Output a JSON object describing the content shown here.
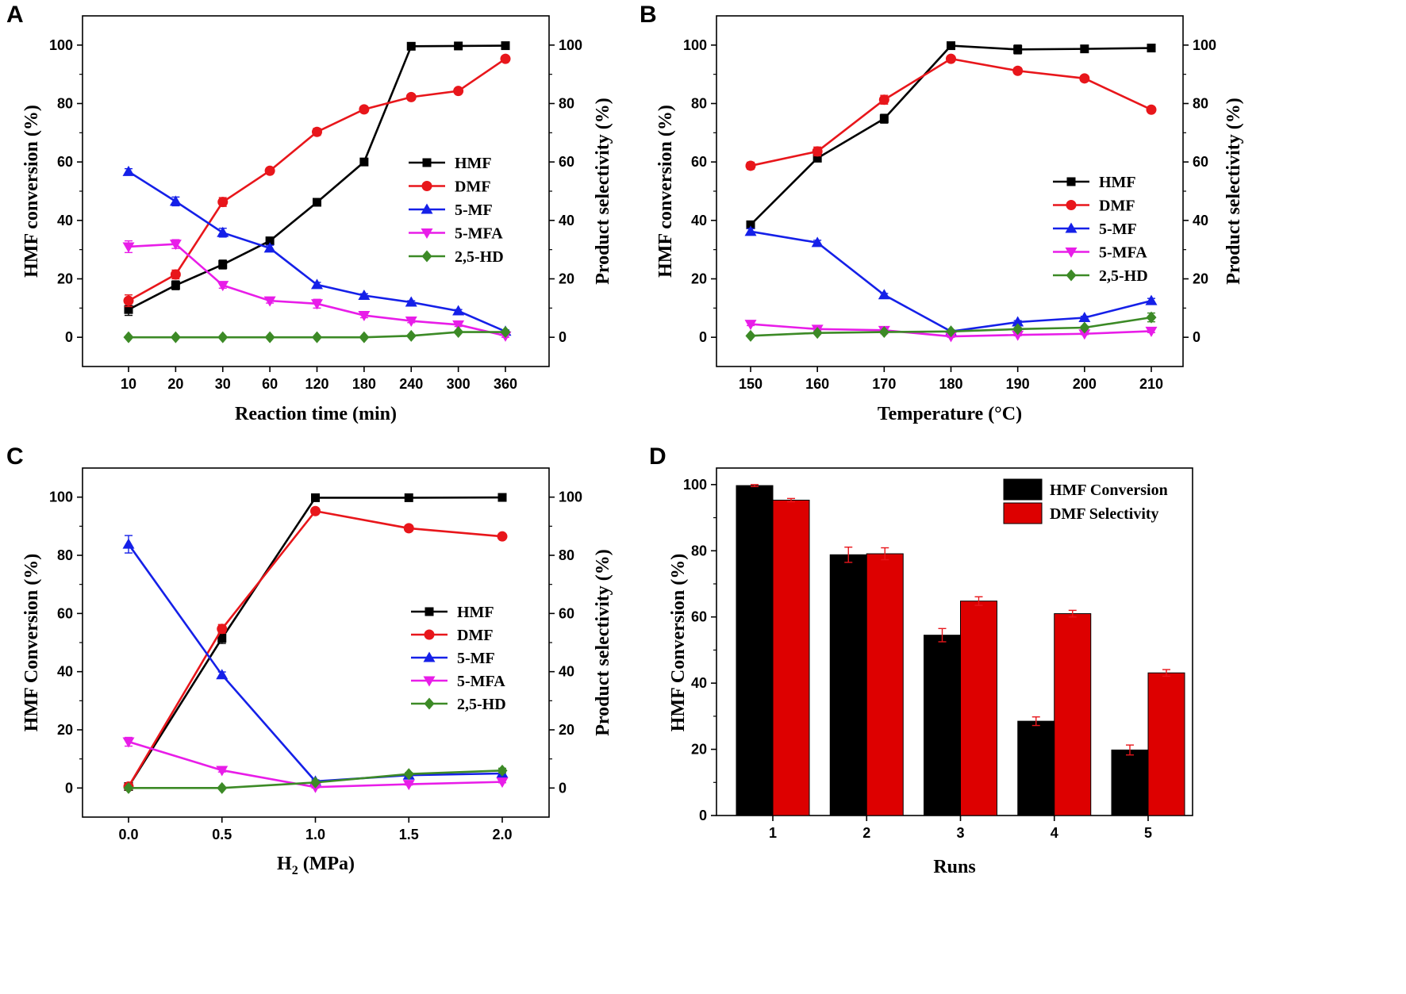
{
  "chart_data": [
    {
      "panel": "A",
      "type": "line",
      "xlabel": "Reaction time (min)",
      "ylabel": "HMF conversion (%)",
      "y2label": "Product selectivity (%)",
      "categories": [
        "10",
        "20",
        "30",
        "60",
        "120",
        "180",
        "240",
        "300",
        "360"
      ],
      "ylim": [
        -10,
        110
      ],
      "y2lim": [
        -10,
        110
      ],
      "yticks": [
        "0",
        "20",
        "40",
        "60",
        "80",
        "100"
      ],
      "legend_position": "center-right",
      "series": [
        {
          "name": "HMF",
          "color": "#000000",
          "marker": "square",
          "axis": "left",
          "values": [
            9.5,
            17.8,
            24.9,
            33.0,
            46.2,
            60.0,
            99.6,
            99.7,
            99.8
          ],
          "errors": [
            2,
            1.5,
            1.5,
            1,
            1,
            0.5,
            0.5,
            0.5,
            0.5
          ]
        },
        {
          "name": "DMF",
          "color": "#e8161b",
          "marker": "circle",
          "axis": "right",
          "values": [
            12.5,
            21.5,
            46.3,
            57.0,
            70.3,
            78.0,
            82.2,
            84.3,
            95.3
          ],
          "errors": [
            2,
            1.5,
            1.5,
            0.8,
            1.2,
            1,
            0.5,
            0.5,
            0.5
          ]
        },
        {
          "name": "5-MF",
          "color": "#1520e8",
          "marker": "triangle-up",
          "axis": "right",
          "values": [
            56.7,
            46.5,
            35.8,
            30.5,
            18.0,
            14.3,
            12.0,
            9.0,
            2.0
          ],
          "errors": [
            1,
            1.5,
            1.5,
            1,
            0.8,
            0.6,
            0.5,
            0.5,
            0.5
          ]
        },
        {
          "name": "5-MFA",
          "color": "#e81de8",
          "marker": "triangle-down",
          "axis": "right",
          "values": [
            31.0,
            31.9,
            17.8,
            12.5,
            11.5,
            7.5,
            5.6,
            4.3,
            0.5
          ],
          "errors": [
            2,
            1.5,
            1,
            0.8,
            1.5,
            0.8,
            0.6,
            0.6,
            0.5
          ]
        },
        {
          "name": "2,5-HD",
          "color": "#3c8a26",
          "marker": "diamond",
          "axis": "right",
          "values": [
            0,
            0,
            0,
            0,
            0,
            0,
            0.5,
            1.8,
            1.8
          ],
          "errors": [
            0,
            0,
            0,
            0,
            0,
            0,
            0.3,
            0.3,
            0.3
          ]
        }
      ]
    },
    {
      "panel": "B",
      "type": "line",
      "xlabel": "Temperature (°C)",
      "ylabel": "HMF conversion (%)",
      "y2label": "Product selectivity (%)",
      "categories": [
        "150",
        "160",
        "170",
        "180",
        "190",
        "200",
        "210"
      ],
      "ylim": [
        -10,
        110
      ],
      "y2lim": [
        -10,
        110
      ],
      "yticks": [
        "0",
        "20",
        "40",
        "60",
        "80",
        "100"
      ],
      "legend_position": "center-right",
      "series": [
        {
          "name": "HMF",
          "color": "#000000",
          "marker": "square",
          "axis": "left",
          "values": [
            38.5,
            61.3,
            74.8,
            99.8,
            98.5,
            98.7,
            99.0
          ],
          "errors": [
            1.2,
            1,
            1.5,
            0.5,
            1.5,
            1,
            0.5
          ]
        },
        {
          "name": "DMF",
          "color": "#e8161b",
          "marker": "circle",
          "axis": "right",
          "values": [
            58.7,
            63.6,
            81.3,
            95.3,
            91.2,
            88.6,
            77.9
          ],
          "errors": [
            1.2,
            1.5,
            1.5,
            0.6,
            1,
            0.8,
            0.8
          ]
        },
        {
          "name": "5-MF",
          "color": "#1520e8",
          "marker": "triangle-up",
          "axis": "right",
          "values": [
            36.2,
            32.4,
            14.5,
            2.0,
            5.2,
            6.7,
            12.5
          ],
          "errors": [
            1,
            0.8,
            0.5,
            0.5,
            0.5,
            0.5,
            0.8
          ]
        },
        {
          "name": "5-MFA",
          "color": "#e81de8",
          "marker": "triangle-down",
          "axis": "right",
          "values": [
            4.5,
            2.8,
            2.4,
            0.3,
            0.8,
            1.2,
            2.1
          ],
          "errors": [
            0.5,
            0.5,
            1.2,
            0.3,
            0.3,
            0.3,
            0.5
          ]
        },
        {
          "name": "2,5-HD",
          "color": "#3c8a26",
          "marker": "diamond",
          "axis": "right",
          "values": [
            0.5,
            1.5,
            1.8,
            2.0,
            2.8,
            3.3,
            6.8
          ],
          "errors": [
            0.3,
            0.3,
            0.3,
            0.3,
            0.5,
            0.5,
            1.5
          ]
        }
      ]
    },
    {
      "panel": "C",
      "type": "line",
      "xlabel": "H2 (MPa)",
      "xlabel_main": "H",
      "xlabel_sub": "2",
      "xlabel_rest": " (MPa)",
      "ylabel": "HMF Conversion (%)",
      "y2label": "Product selectivity (%)",
      "categories": [
        "0.0",
        "0.5",
        "1.0",
        "1.5",
        "2.0"
      ],
      "ylim": [
        -10,
        110
      ],
      "y2lim": [
        -10,
        110
      ],
      "yticks": [
        "0",
        "20",
        "40",
        "60",
        "80",
        "100"
      ],
      "legend_position": "center-right",
      "series": [
        {
          "name": "HMF",
          "color": "#000000",
          "marker": "square",
          "axis": "left",
          "values": [
            0.5,
            51.5,
            99.8,
            99.8,
            99.9
          ],
          "errors": [
            0.3,
            1.8,
            0.5,
            0.8,
            1
          ]
        },
        {
          "name": "DMF",
          "color": "#e8161b",
          "marker": "circle",
          "axis": "right",
          "values": [
            0.5,
            54.7,
            95.2,
            89.3,
            86.5
          ],
          "errors": [
            0.3,
            1.5,
            0.5,
            1,
            0.6
          ]
        },
        {
          "name": "5-MF",
          "color": "#1520e8",
          "marker": "triangle-up",
          "axis": "right",
          "values": [
            83.8,
            38.9,
            2.3,
            4.4,
            5.0
          ],
          "errors": [
            3,
            1,
            0.5,
            0.5,
            0.8
          ]
        },
        {
          "name": "5-MFA",
          "color": "#e81de8",
          "marker": "triangle-down",
          "axis": "right",
          "values": [
            15.9,
            6.1,
            0.3,
            1.3,
            2.1
          ],
          "errors": [
            1.5,
            0.6,
            0.3,
            0.3,
            0.3
          ]
        },
        {
          "name": "2,5-HD",
          "color": "#3c8a26",
          "marker": "diamond",
          "axis": "right",
          "values": [
            0,
            0,
            1.9,
            4.8,
            6.0
          ],
          "errors": [
            0,
            0,
            0.3,
            0.5,
            0.8
          ]
        }
      ]
    },
    {
      "panel": "D",
      "type": "bar",
      "xlabel": "Runs",
      "ylabel": "HMF Conversion (%)",
      "categories": [
        "1",
        "2",
        "3",
        "4",
        "5"
      ],
      "ylim": [
        0,
        105
      ],
      "yticks": [
        "0",
        "20",
        "40",
        "60",
        "80",
        "100"
      ],
      "legend_position": "top-right",
      "series": [
        {
          "name": "HMF Conversion",
          "color": "#000000",
          "values": [
            99.7,
            78.8,
            54.5,
            28.5,
            19.8
          ],
          "errors": [
            0.3,
            2.3,
            2.0,
            1.3,
            1.5
          ]
        },
        {
          "name": "DMF Selectivity",
          "color": "#dd0000",
          "values": [
            95.3,
            79.1,
            64.8,
            61.0,
            43.1
          ],
          "errors": [
            0.5,
            1.8,
            1.3,
            1.0,
            1.0
          ]
        }
      ]
    }
  ]
}
